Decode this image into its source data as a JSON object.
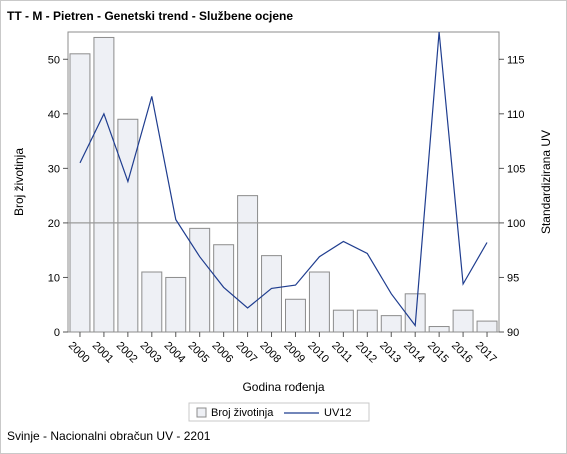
{
  "title": "TT - M - Pietren - Genetski trend - Službene ocjene",
  "footnote": "Svinje - Nacionalni obračun UV - 2201",
  "chart_data": {
    "type": "bar",
    "title": "TT - M - Pietren - Genetski trend - Službene ocjene",
    "xlabel": "Godina rođenja",
    "ylabel": "Broj životinja",
    "y2label": "Standardizirana UV",
    "categories": [
      "2000",
      "2001",
      "2002",
      "2003",
      "2004",
      "2005",
      "2006",
      "2007",
      "2008",
      "2009",
      "2010",
      "2011",
      "2012",
      "2013",
      "2014",
      "2015",
      "2016",
      "2017"
    ],
    "ylim": [
      0,
      55
    ],
    "yticks": [
      0,
      10,
      20,
      30,
      40,
      50
    ],
    "y2lim": [
      90,
      117.5
    ],
    "y2ticks": [
      90,
      95,
      100,
      105,
      110,
      115
    ],
    "reference_line_y2": 100,
    "grid": false,
    "legend_position": "bottom",
    "series": [
      {
        "name": "Broj životinja",
        "type": "bar",
        "axis": "left",
        "color": "#eef0f5",
        "edge_color": "#8c8c8c",
        "values": [
          51,
          54,
          39,
          11,
          10,
          19,
          16,
          25,
          14,
          6,
          11,
          4,
          4,
          3,
          7,
          1,
          4,
          2
        ]
      },
      {
        "name": "UV12",
        "type": "line",
        "axis": "right",
        "color": "#1f3d8f",
        "values": [
          105.5,
          110,
          103.8,
          111.6,
          100.3,
          96.9,
          94.1,
          92.2,
          94,
          94.3,
          96.9,
          98.3,
          97.2,
          93.5,
          90.6,
          117.5,
          94.4,
          98.2
        ]
      }
    ]
  }
}
